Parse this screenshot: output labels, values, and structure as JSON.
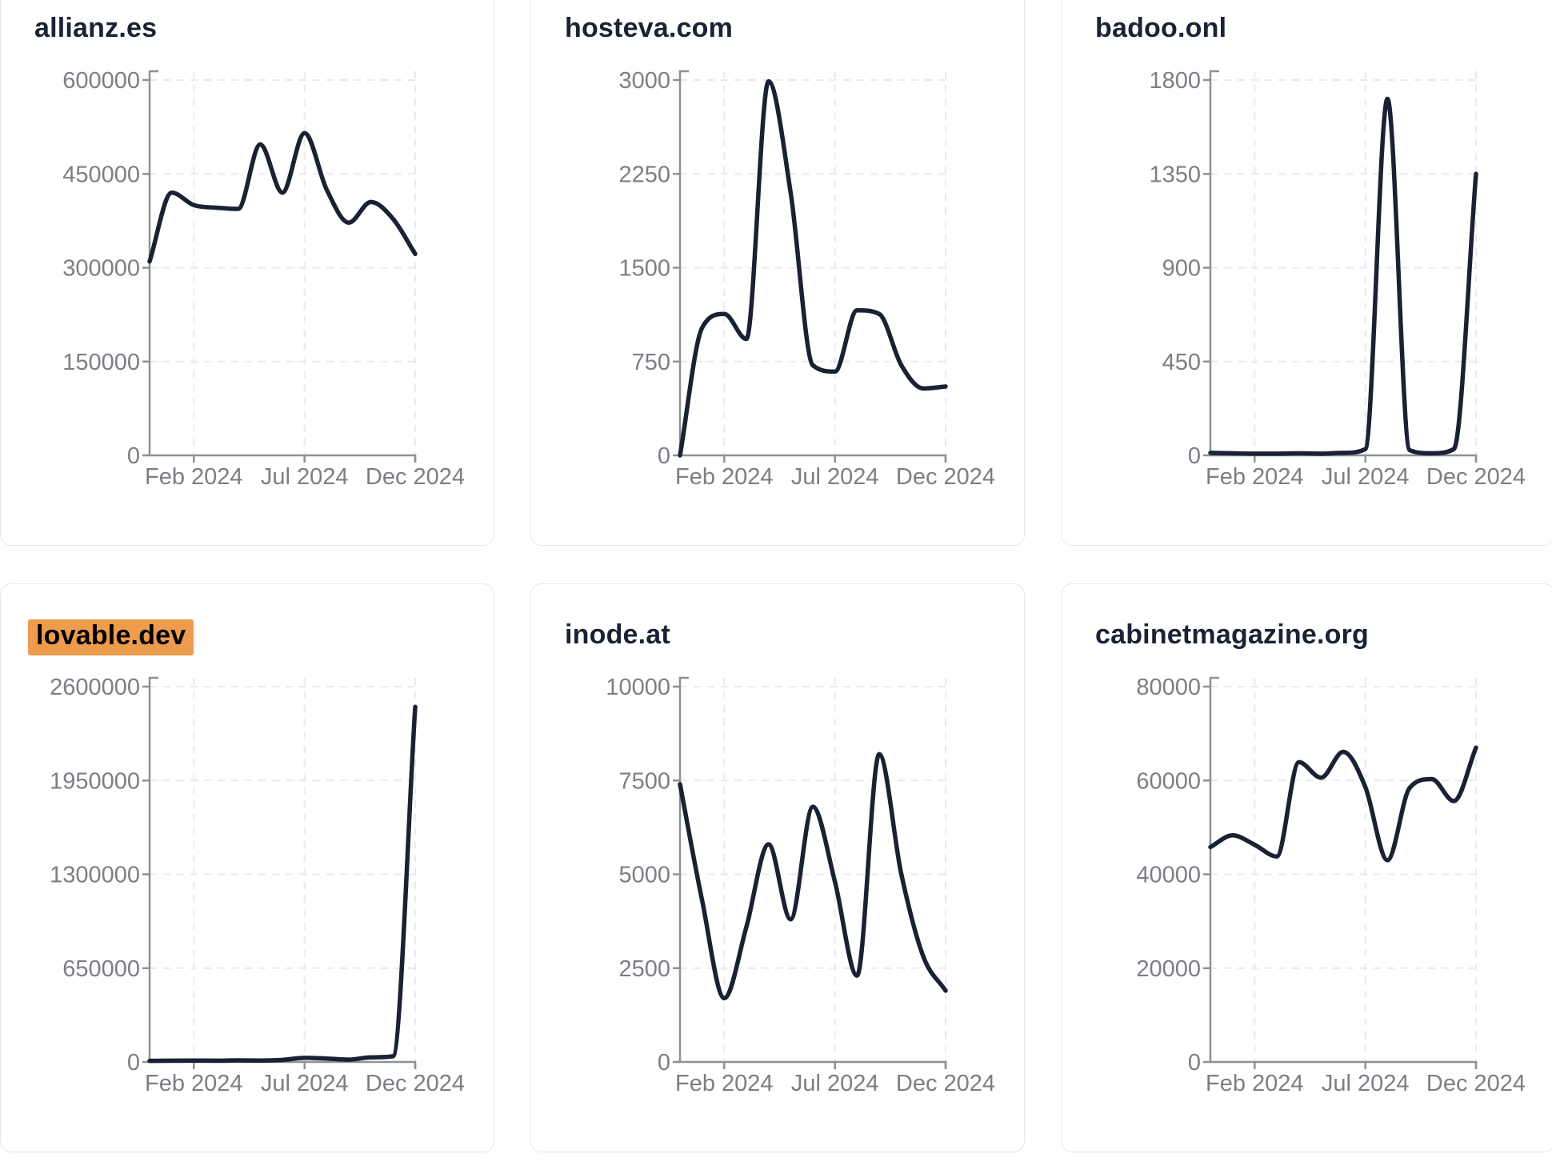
{
  "style": {
    "page_background": "#ffffff",
    "card_background": "#ffffff",
    "card_border_color": "#e6e6ee",
    "title_color": "#1b2234",
    "line_color": "#1a2133",
    "axis_color": "#8e9196",
    "tick_label_color": "#7b7e85",
    "gridline_color": "#e9e9f0",
    "highlight_color": "#ed9b4c",
    "highlight_text_color": "#000000"
  },
  "x_axis": {
    "tick_labels": [
      "Feb 2024",
      "Jul 2024",
      "Dec 2024"
    ],
    "tick_month_indices": [
      2,
      7,
      12
    ]
  },
  "chart_data": [
    {
      "type": "line",
      "title": "allianz.es",
      "highlighted": false,
      "x": [
        "Dec 2023",
        "Jan 2024",
        "Feb 2024",
        "Mar 2024",
        "Apr 2024",
        "May 2024",
        "Jun 2024",
        "Jul 2024",
        "Aug 2024",
        "Sep 2024",
        "Oct 2024",
        "Nov 2024",
        "Dec 2024"
      ],
      "values": [
        310000,
        420000,
        400000,
        396000,
        394000,
        497000,
        420000,
        515000,
        425000,
        372000,
        405000,
        378000,
        322000
      ],
      "ylim": [
        0,
        600000
      ],
      "y_ticks": [
        0,
        150000,
        300000,
        450000,
        600000
      ],
      "y_tick_labels": [
        "0",
        "150000",
        "300000",
        "450000",
        "600000"
      ],
      "x_tick_labels": [
        "Feb 2024",
        "Jul 2024",
        "Dec 2024"
      ],
      "grid": true,
      "legend": "none"
    },
    {
      "type": "line",
      "title": "hosteva.com",
      "highlighted": false,
      "x": [
        "Dec 2023",
        "Jan 2024",
        "Feb 2024",
        "Mar 2024",
        "Apr 2024",
        "May 2024",
        "Jun 2024",
        "Jul 2024",
        "Aug 2024",
        "Sep 2024",
        "Oct 2024",
        "Nov 2024",
        "Dec 2024"
      ],
      "values": [
        0,
        1020,
        1130,
        930,
        2990,
        2100,
        720,
        670,
        1160,
        1130,
        720,
        535,
        550
      ],
      "ylim": [
        0,
        3000
      ],
      "y_ticks": [
        0,
        750,
        1500,
        2250,
        3000
      ],
      "y_tick_labels": [
        "0",
        "750",
        "1500",
        "2250",
        "3000"
      ],
      "x_tick_labels": [
        "Feb 2024",
        "Jul 2024",
        "Dec 2024"
      ],
      "grid": true,
      "legend": "none"
    },
    {
      "type": "line",
      "title": "badoo.onl",
      "highlighted": false,
      "x": [
        "Dec 2023",
        "Jan 2024",
        "Feb 2024",
        "Mar 2024",
        "Apr 2024",
        "May 2024",
        "Jun 2024",
        "Jul 2024",
        "Aug 2024",
        "Sep 2024",
        "Oct 2024",
        "Nov 2024",
        "Dec 2024"
      ],
      "values": [
        12,
        10,
        8,
        8,
        10,
        8,
        12,
        30,
        1710,
        25,
        10,
        30,
        1350
      ],
      "ylim": [
        0,
        1800
      ],
      "y_ticks": [
        0,
        450,
        900,
        1350,
        1800
      ],
      "y_tick_labels": [
        "0",
        "450",
        "900",
        "1350",
        "1800"
      ],
      "x_tick_labels": [
        "Feb 2024",
        "Jul 2024",
        "Dec 2024"
      ],
      "grid": true,
      "legend": "none"
    },
    {
      "type": "line",
      "title": "lovable.dev",
      "highlighted": true,
      "x": [
        "Dec 2023",
        "Jan 2024",
        "Feb 2024",
        "Mar 2024",
        "Apr 2024",
        "May 2024",
        "Jun 2024",
        "Jul 2024",
        "Aug 2024",
        "Sep 2024",
        "Oct 2024",
        "Nov 2024",
        "Dec 2024"
      ],
      "values": [
        8000,
        9000,
        10000,
        9000,
        11000,
        10000,
        14000,
        28000,
        24000,
        16000,
        32000,
        40000,
        2460000
      ],
      "ylim": [
        0,
        2600000
      ],
      "y_ticks": [
        0,
        650000,
        1300000,
        1950000,
        2600000
      ],
      "y_tick_labels": [
        "0",
        "650000",
        "1300000",
        "1950000",
        "2600000"
      ],
      "x_tick_labels": [
        "Feb 2024",
        "Jul 2024",
        "Dec 2024"
      ],
      "grid": true,
      "legend": "none"
    },
    {
      "type": "line",
      "title": "inode.at",
      "highlighted": false,
      "x": [
        "Dec 2023",
        "Jan 2024",
        "Feb 2024",
        "Mar 2024",
        "Apr 2024",
        "May 2024",
        "Jun 2024",
        "Jul 2024",
        "Aug 2024",
        "Sep 2024",
        "Oct 2024",
        "Nov 2024",
        "Dec 2024"
      ],
      "values": [
        7400,
        4300,
        1700,
        3600,
        5800,
        3800,
        6800,
        4800,
        2300,
        8200,
        5000,
        2800,
        1900
      ],
      "ylim": [
        0,
        10000
      ],
      "y_ticks": [
        0,
        2500,
        5000,
        7500,
        10000
      ],
      "y_tick_labels": [
        "0",
        "2500",
        "5000",
        "7500",
        "10000"
      ],
      "x_tick_labels": [
        "Feb 2024",
        "Jul 2024",
        "Dec 2024"
      ],
      "grid": true,
      "legend": "none"
    },
    {
      "type": "line",
      "title": "cabinetmagazine.org",
      "highlighted": false,
      "x": [
        "Dec 2023",
        "Jan 2024",
        "Feb 2024",
        "Mar 2024",
        "Apr 2024",
        "May 2024",
        "Jun 2024",
        "Jul 2024",
        "Aug 2024",
        "Sep 2024",
        "Oct 2024",
        "Nov 2024",
        "Dec 2024"
      ],
      "values": [
        45800,
        48300,
        46300,
        43800,
        63900,
        60600,
        66100,
        58600,
        43000,
        58400,
        60300,
        55600,
        67000
      ],
      "ylim": [
        0,
        80000
      ],
      "y_ticks": [
        0,
        20000,
        40000,
        60000,
        80000
      ],
      "y_tick_labels": [
        "0",
        "20000",
        "40000",
        "60000",
        "80000"
      ],
      "x_tick_labels": [
        "Feb 2024",
        "Jul 2024",
        "Dec 2024"
      ],
      "grid": true,
      "legend": "none"
    }
  ]
}
